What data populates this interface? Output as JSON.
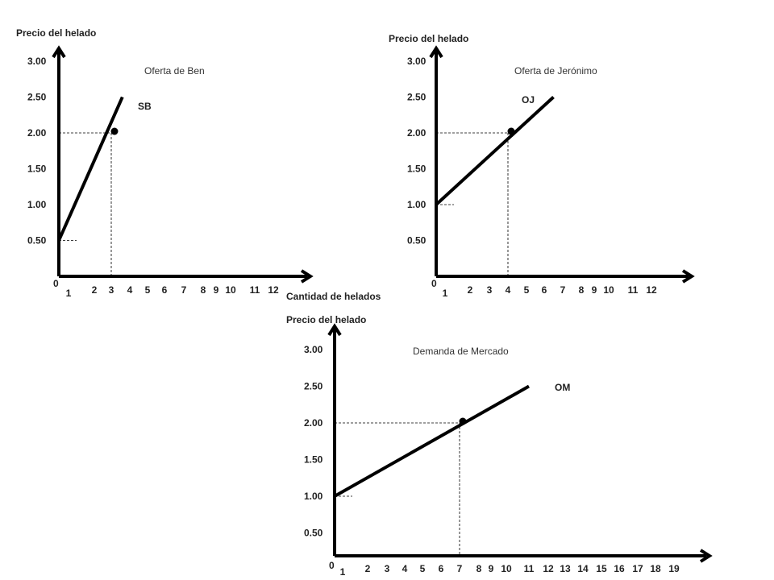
{
  "chart_data": [
    {
      "type": "line",
      "title": "Oferta de Ben",
      "ylabel": "Precio del helado",
      "xlabel": "Cantidad de helados",
      "y_ticks": [
        "3.00",
        "2.50",
        "2.00",
        "1.50",
        "1.00",
        "0.50"
      ],
      "x_ticks": [
        "1",
        "2",
        "3",
        "4",
        "5",
        "6",
        "7",
        "8",
        "9",
        "10",
        "11",
        "12"
      ],
      "origin_label": "0",
      "series": [
        {
          "name": "SB",
          "x": [
            0,
            3.6
          ],
          "y": [
            0.5,
            2.5
          ]
        }
      ],
      "highlight_point": {
        "x": 3,
        "y": 2.0
      }
    },
    {
      "type": "line",
      "title": "Oferta de Jerónimo",
      "ylabel": "Precio del helado",
      "xlabel": "",
      "y_ticks": [
        "3.00",
        "2.50",
        "2.00",
        "1.50",
        "1.00",
        "0.50"
      ],
      "x_ticks": [
        "1",
        "2",
        "3",
        "4",
        "5",
        "6",
        "7",
        "8",
        "9",
        "10",
        "11",
        "12"
      ],
      "origin_label": "0",
      "series": [
        {
          "name": "OJ",
          "x": [
            0,
            6.5
          ],
          "y": [
            1.0,
            2.5
          ]
        }
      ],
      "highlight_point": {
        "x": 4,
        "y": 2.0
      }
    },
    {
      "type": "line",
      "title": "Demanda de Mercado",
      "ylabel": "Precio del helado",
      "xlabel": "",
      "y_ticks": [
        "3.00",
        "2.50",
        "2.00",
        "1.50",
        "1.00",
        "0.50"
      ],
      "x_ticks": [
        "1",
        "2",
        "3",
        "4",
        "5",
        "6",
        "7",
        "8",
        "9",
        "10",
        "11",
        "12",
        "13",
        "14",
        "15",
        "16",
        "17",
        "18",
        "19"
      ],
      "origin_label": "0",
      "series": [
        {
          "name": "OM",
          "x": [
            0,
            11
          ],
          "y": [
            1.0,
            2.5
          ]
        }
      ],
      "highlight_point": {
        "x": 7,
        "y": 2.0
      }
    }
  ]
}
